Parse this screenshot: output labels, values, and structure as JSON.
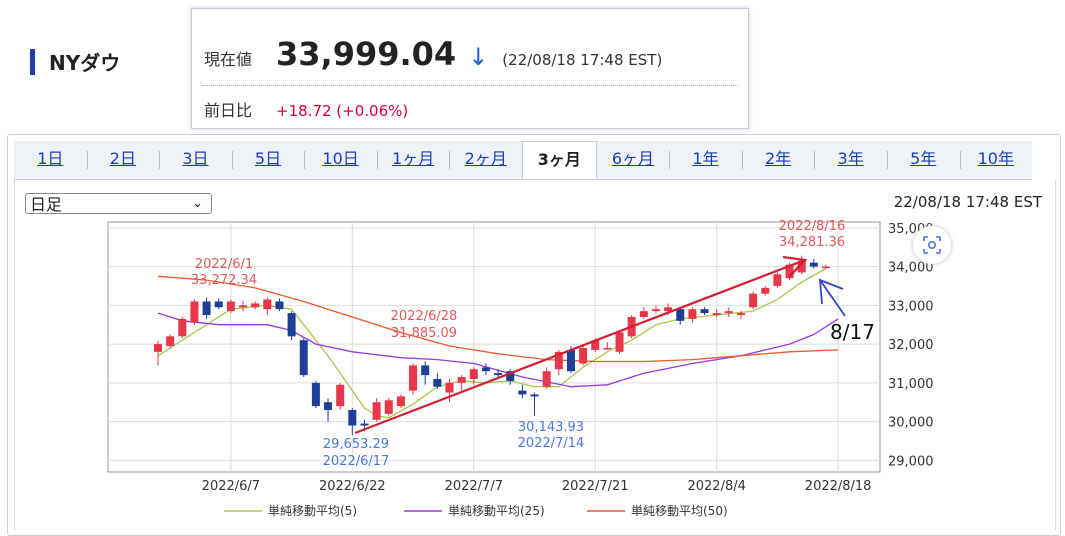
{
  "header": {
    "index_name": "NYダウ"
  },
  "quote": {
    "price_label": "現在値",
    "price": "33,999.04",
    "direction_arrow": "↓",
    "timestamp": "(22/08/18 17:48 EST)",
    "change_label": "前日比",
    "change": "+18.72 (+0.06%)"
  },
  "tabs": [
    {
      "label": "1日",
      "active": false
    },
    {
      "label": "2日",
      "active": false
    },
    {
      "label": "3日",
      "active": false
    },
    {
      "label": "5日",
      "active": false
    },
    {
      "label": "10日",
      "active": false
    },
    {
      "label": "1ヶ月",
      "active": false
    },
    {
      "label": "2ヶ月",
      "active": false
    },
    {
      "label": "3ヶ月",
      "active": true
    },
    {
      "label": "6ヶ月",
      "active": false
    },
    {
      "label": "1年",
      "active": false
    },
    {
      "label": "2年",
      "active": false
    },
    {
      "label": "3年",
      "active": false
    },
    {
      "label": "5年",
      "active": false
    },
    {
      "label": "10年",
      "active": false
    }
  ],
  "controls": {
    "period_select": "日足",
    "chart_timestamp": "22/08/18 17:48 EST",
    "zoom_icon": "zoom-icon"
  },
  "colors": {
    "up": "#e8364a",
    "down": "#1e3f98",
    "ma5": "#a5c94a",
    "ma25": "#9a3ae0",
    "ma50": "#f0572a",
    "trend_arrow": "#d21f2f",
    "annot_arrow": "#3344cc",
    "annot_high": "#e05a5a",
    "annot_low": "#4a78e0"
  },
  "chart_data": {
    "type": "candlestick",
    "ylim": [
      28700,
      35150
    ],
    "yticks": [
      "35,000",
      "34,000",
      "33,000",
      "32,000",
      "31,000",
      "30,000",
      "29,000"
    ],
    "ytick_values": [
      35000,
      34000,
      33000,
      32000,
      31000,
      30000,
      29000
    ],
    "xtick_labels": [
      {
        "label": "2022/6/7",
        "index": 6
      },
      {
        "label": "2022/6/22",
        "index": 16
      },
      {
        "label": "2022/7/7",
        "index": 26
      },
      {
        "label": "2022/7/21",
        "index": 36
      },
      {
        "label": "2022/8/4",
        "index": 46
      },
      {
        "label": "2022/8/18",
        "index": 56
      }
    ],
    "candles": [
      {
        "o": 31800,
        "c": 32000,
        "h": 32080,
        "l": 31450
      },
      {
        "o": 31950,
        "c": 32200,
        "h": 32250,
        "l": 31900
      },
      {
        "o": 32200,
        "c": 32650,
        "h": 32700,
        "l": 32150
      },
      {
        "o": 32550,
        "c": 33100,
        "h": 33150,
        "l": 32500
      },
      {
        "o": 33100,
        "c": 32750,
        "h": 33200,
        "l": 32650
      },
      {
        "o": 33100,
        "c": 32950,
        "h": 33180,
        "l": 32900
      },
      {
        "o": 32850,
        "c": 33100,
        "h": 33150,
        "l": 32800
      },
      {
        "o": 32950,
        "c": 33000,
        "h": 33120,
        "l": 32850
      },
      {
        "o": 32950,
        "c": 33050,
        "h": 33100,
        "l": 32900
      },
      {
        "o": 32900,
        "c": 33150,
        "h": 33200,
        "l": 32750
      },
      {
        "o": 33100,
        "c": 32900,
        "h": 33180,
        "l": 32850
      },
      {
        "o": 32800,
        "c": 32200,
        "h": 32850,
        "l": 32100
      },
      {
        "o": 32100,
        "c": 31200,
        "h": 32150,
        "l": 31150
      },
      {
        "o": 31000,
        "c": 30400,
        "h": 31050,
        "l": 30350
      },
      {
        "o": 30500,
        "c": 30300,
        "h": 30600,
        "l": 30000
      },
      {
        "o": 30400,
        "c": 30950,
        "h": 31000,
        "l": 30300
      },
      {
        "o": 30300,
        "c": 29900,
        "h": 30350,
        "l": 29650
      },
      {
        "o": 29950,
        "c": 29900,
        "h": 30050,
        "l": 29750
      },
      {
        "o": 30050,
        "c": 30500,
        "h": 30600,
        "l": 30000
      },
      {
        "o": 30200,
        "c": 30550,
        "h": 30600,
        "l": 30150
      },
      {
        "o": 30400,
        "c": 30650,
        "h": 30700,
        "l": 30350
      },
      {
        "o": 30800,
        "c": 31450,
        "h": 31500,
        "l": 30700
      },
      {
        "o": 31450,
        "c": 31200,
        "h": 31550,
        "l": 30950
      },
      {
        "o": 31100,
        "c": 30900,
        "h": 31250,
        "l": 30850
      },
      {
        "o": 30750,
        "c": 31000,
        "h": 31100,
        "l": 30500
      },
      {
        "o": 31000,
        "c": 31150,
        "h": 31200,
        "l": 30800
      },
      {
        "o": 31100,
        "c": 31350,
        "h": 31400,
        "l": 30950
      },
      {
        "o": 31400,
        "c": 31300,
        "h": 31500,
        "l": 31200
      },
      {
        "o": 31250,
        "c": 31200,
        "h": 31350,
        "l": 31100
      },
      {
        "o": 31300,
        "c": 31050,
        "h": 31350,
        "l": 30950
      },
      {
        "o": 30800,
        "c": 30700,
        "h": 30950,
        "l": 30600
      },
      {
        "o": 30700,
        "c": 30650,
        "h": 30750,
        "l": 30150
      },
      {
        "o": 30900,
        "c": 31300,
        "h": 31400,
        "l": 30850
      },
      {
        "o": 31350,
        "c": 31800,
        "h": 31850,
        "l": 31200
      },
      {
        "o": 31850,
        "c": 31300,
        "h": 31950,
        "l": 31250
      },
      {
        "o": 31500,
        "c": 31900,
        "h": 32000,
        "l": 31450
      },
      {
        "o": 31850,
        "c": 32100,
        "h": 32150,
        "l": 31800
      },
      {
        "o": 31900,
        "c": 31900,
        "h": 32050,
        "l": 31850
      },
      {
        "o": 31800,
        "c": 32300,
        "h": 32350,
        "l": 31750
      },
      {
        "o": 32200,
        "c": 32700,
        "h": 32750,
        "l": 32150
      },
      {
        "o": 32700,
        "c": 32850,
        "h": 32950,
        "l": 32650
      },
      {
        "o": 32850,
        "c": 32900,
        "h": 33000,
        "l": 32800
      },
      {
        "o": 32850,
        "c": 32950,
        "h": 33050,
        "l": 32750
      },
      {
        "o": 32900,
        "c": 32600,
        "h": 32950,
        "l": 32500
      },
      {
        "o": 32650,
        "c": 32900,
        "h": 32950,
        "l": 32550
      },
      {
        "o": 32900,
        "c": 32800,
        "h": 32950,
        "l": 32750
      },
      {
        "o": 32750,
        "c": 32800,
        "h": 32900,
        "l": 32700
      },
      {
        "o": 32800,
        "c": 32850,
        "h": 32950,
        "l": 32700
      },
      {
        "o": 32750,
        "c": 32800,
        "h": 32850,
        "l": 32650
      },
      {
        "o": 32950,
        "c": 33300,
        "h": 33350,
        "l": 32900
      },
      {
        "o": 33300,
        "c": 33450,
        "h": 33500,
        "l": 33250
      },
      {
        "o": 33500,
        "c": 33800,
        "h": 33850,
        "l": 33450
      },
      {
        "o": 33700,
        "c": 34050,
        "h": 34100,
        "l": 33650
      },
      {
        "o": 33850,
        "c": 34150,
        "h": 34281,
        "l": 33800
      },
      {
        "o": 34100,
        "c": 34000,
        "h": 34200,
        "l": 33950
      },
      {
        "o": 34000,
        "c": 34000,
        "h": 34050,
        "l": 33950
      }
    ],
    "ma_series": [
      {
        "name": "単純移動平均(5)",
        "points": [
          [
            0,
            31700
          ],
          [
            2,
            32100
          ],
          [
            4,
            32500
          ],
          [
            6,
            32900
          ],
          [
            9,
            33000
          ],
          [
            11,
            32900
          ],
          [
            12,
            32500
          ],
          [
            14,
            31700
          ],
          [
            16,
            30800
          ],
          [
            17,
            30350
          ],
          [
            18,
            30150
          ],
          [
            19,
            30100
          ],
          [
            21,
            30450
          ],
          [
            23,
            30900
          ],
          [
            25,
            31050
          ],
          [
            27,
            31000
          ],
          [
            29,
            31050
          ],
          [
            31,
            30900
          ],
          [
            33,
            30900
          ],
          [
            35,
            31400
          ],
          [
            37,
            31800
          ],
          [
            39,
            32100
          ],
          [
            41,
            32500
          ],
          [
            43,
            32650
          ],
          [
            46,
            32750
          ],
          [
            49,
            32850
          ],
          [
            51,
            33150
          ],
          [
            53,
            33600
          ],
          [
            55,
            33950
          ]
        ]
      },
      {
        "name": "単純移動平均(25)",
        "points": [
          [
            0,
            32800
          ],
          [
            2,
            32600
          ],
          [
            5,
            32500
          ],
          [
            9,
            32500
          ],
          [
            11,
            32350
          ],
          [
            13,
            32000
          ],
          [
            16,
            31800
          ],
          [
            20,
            31650
          ],
          [
            23,
            31600
          ],
          [
            26,
            31500
          ],
          [
            30,
            31150
          ],
          [
            34,
            30900
          ],
          [
            37,
            30950
          ],
          [
            40,
            31250
          ],
          [
            44,
            31500
          ],
          [
            48,
            31700
          ],
          [
            52,
            32000
          ],
          [
            54,
            32250
          ],
          [
            56,
            32650
          ]
        ]
      },
      {
        "name": "単純移動平均(50)",
        "points": [
          [
            0,
            33750
          ],
          [
            4,
            33650
          ],
          [
            8,
            33450
          ],
          [
            12,
            33100
          ],
          [
            16,
            32700
          ],
          [
            20,
            32300
          ],
          [
            24,
            31950
          ],
          [
            28,
            31750
          ],
          [
            32,
            31600
          ],
          [
            36,
            31550
          ],
          [
            40,
            31550
          ],
          [
            44,
            31600
          ],
          [
            48,
            31700
          ],
          [
            52,
            31800
          ],
          [
            56,
            31850
          ]
        ]
      }
    ],
    "annotations": [
      {
        "text1": "2022/6/1",
        "text2": "33,272.34"
      },
      {
        "text1": "2022/6/28",
        "text2": "31,885.09"
      },
      {
        "text1": "2022/8/16",
        "text2": "34,281.36"
      },
      {
        "text1": "29,653.29",
        "text2": "2022/6/17"
      },
      {
        "text1": "30,143.93",
        "text2": "2022/7/14"
      }
    ],
    "callout": "8/17",
    "legend": [
      "単純移動平均(5)",
      "単純移動平均(25)",
      "単純移動平均(50)"
    ]
  }
}
